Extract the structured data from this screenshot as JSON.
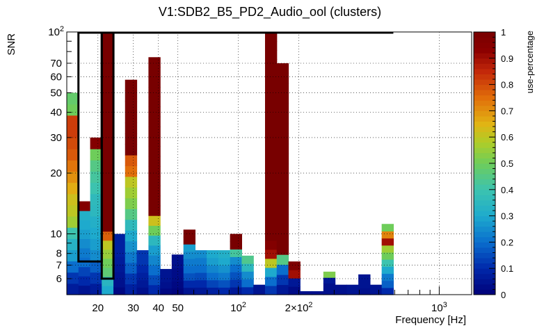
{
  "chart_data": {
    "type": "heatmap",
    "title": "V1:SDB2_B5_PD2_Audio_ool (clusters)",
    "xlabel": "Frequency [Hz]",
    "ylabel": "SNR",
    "zlabel": "use-percentage",
    "x_scale": "log",
    "y_scale": "log",
    "xlim": [
      14,
      1450
    ],
    "ylim": [
      5,
      100
    ],
    "zlim": [
      0,
      1
    ],
    "x_tick_labels": [
      {
        "value": 20,
        "label": "20"
      },
      {
        "value": 30,
        "label": "30"
      },
      {
        "value": 40,
        "label": "40"
      },
      {
        "value": 50,
        "label": "50"
      },
      {
        "value": 100,
        "label": "10",
        "exponent": "2"
      },
      {
        "value": 200,
        "label": "2×10",
        "exponent": "2"
      },
      {
        "value": 1000,
        "label": "10",
        "exponent": "3"
      }
    ],
    "y_tick_labels": [
      {
        "value": 6,
        "label": "6"
      },
      {
        "value": 7,
        "label": "7"
      },
      {
        "value": 8,
        "label": "8"
      },
      {
        "value": 10,
        "label": "10"
      },
      {
        "value": 20,
        "label": "20"
      },
      {
        "value": 30,
        "label": "30"
      },
      {
        "value": 40,
        "label": "40"
      },
      {
        "value": 50,
        "label": "50"
      },
      {
        "value": 60,
        "label": "60"
      },
      {
        "value": 70,
        "label": "70"
      },
      {
        "value": 100,
        "label": "10",
        "exponent": "2"
      }
    ],
    "z_tick_labels": [
      "0",
      "0.1",
      "0.2",
      "0.3",
      "0.4",
      "0.5",
      "0.6",
      "0.7",
      "0.8",
      "0.9",
      "1"
    ],
    "grid": true,
    "columns": [
      {
        "f_lo": 14.0,
        "f_hi": 16.0,
        "snr_top": 50,
        "values": [
          0.07,
          0.12,
          0.2,
          0.28,
          0.33,
          0.4,
          0.56,
          0.6,
          0.62,
          0.66,
          0.7,
          0.74,
          0.78,
          0.8,
          0.82,
          0.82,
          0.5,
          0.48
        ]
      },
      {
        "f_lo": 16.0,
        "f_hi": 18.3,
        "snr_top": 14.5,
        "values": [
          0.05,
          0.1,
          0.14,
          0.2,
          0.22,
          0.25,
          0.28,
          0.3,
          0.32,
          0.96
        ]
      },
      {
        "f_lo": 18.3,
        "f_hi": 20.9,
        "snr_top": 30,
        "values": [
          0.07,
          0.12,
          0.18,
          0.25,
          0.28,
          0.3,
          0.32,
          0.35,
          0.36,
          0.4,
          0.42,
          0.45,
          0.5,
          0.96
        ]
      },
      {
        "f_lo": 20.9,
        "f_hi": 23.9,
        "snr_top": 100,
        "values": [
          0.3,
          0.34,
          0.47,
          0.5,
          0.55,
          0.6,
          0.77,
          1,
          1,
          1,
          1,
          1,
          1,
          1,
          1,
          1,
          1,
          1,
          1,
          1,
          1,
          1,
          1,
          1,
          1,
          1,
          1,
          1,
          1
        ]
      },
      {
        "f_lo": 23.9,
        "f_hi": 27.3,
        "snr_top": 10,
        "values": [
          0.02,
          0.04,
          0.05,
          0.06,
          0.07,
          0.08,
          0.08,
          0.08
        ]
      },
      {
        "f_lo": 27.3,
        "f_hi": 31.2,
        "snr_top": 58,
        "values": [
          0.08,
          0.12,
          0.18,
          0.22,
          0.26,
          0.3,
          0.36,
          0.45,
          0.52,
          0.56,
          0.6,
          0.75,
          0.78,
          1,
          1,
          1,
          1,
          1,
          1,
          1
        ]
      },
      {
        "f_lo": 31.2,
        "f_hi": 35.7,
        "snr_top": 8.3,
        "values": [
          0.04,
          0.06,
          0.08,
          0.1,
          0.12,
          0.12
        ]
      },
      {
        "f_lo": 35.7,
        "f_hi": 40.8,
        "snr_top": 75,
        "values": [
          0.1,
          0.15,
          0.2,
          0.24,
          0.28,
          0.35,
          0.5,
          0.62,
          1,
          1,
          1,
          1,
          1,
          1,
          1,
          1,
          1,
          1,
          1,
          1,
          1,
          1,
          1,
          1
        ]
      },
      {
        "f_lo": 40.8,
        "f_hi": 46.6,
        "snr_top": 6.7,
        "values": [
          0.02,
          0.04,
          0.05,
          0.05
        ]
      },
      {
        "f_lo": 46.6,
        "f_hi": 53.3,
        "snr_top": 7.9,
        "values": [
          0.01,
          0.02,
          0.03,
          0.03,
          0.04,
          0.04
        ]
      },
      {
        "f_lo": 53.3,
        "f_hi": 60.9,
        "snr_top": 10.5,
        "values": [
          0.05,
          0.1,
          0.16,
          0.2,
          0.22,
          0.25,
          0.28,
          1,
          1
        ]
      },
      {
        "f_lo": 60.9,
        "f_hi": 69.6,
        "snr_top": 8.3,
        "values": [
          0.06,
          0.1,
          0.15,
          0.2,
          0.22,
          0.25
        ]
      },
      {
        "f_lo": 69.6,
        "f_hi": 79.5,
        "snr_top": 8.3,
        "values": [
          0.08,
          0.14,
          0.2,
          0.24,
          0.28,
          0.3
        ]
      },
      {
        "f_lo": 79.5,
        "f_hi": 90.9,
        "snr_top": 8.3,
        "values": [
          0.1,
          0.16,
          0.22,
          0.26,
          0.3,
          0.32
        ]
      },
      {
        "f_lo": 90.9,
        "f_hi": 103.9,
        "snr_top": 10,
        "values": [
          0.06,
          0.12,
          0.16,
          0.2,
          0.25,
          0.42,
          1,
          1
        ]
      },
      {
        "f_lo": 103.9,
        "f_hi": 118.8,
        "snr_top": 7.8,
        "values": [
          0.1,
          0.2,
          0.25,
          0.35,
          0.44
        ]
      },
      {
        "f_lo": 118.8,
        "f_hi": 135.8,
        "snr_top": 5.6,
        "values": [
          0.05,
          0.05
        ]
      },
      {
        "f_lo": 135.8,
        "f_hi": 155.2,
        "snr_top": 100,
        "values": [
          0.12,
          0.2,
          0.3,
          0.6,
          0.9,
          0.96,
          1,
          1,
          1,
          1,
          1,
          1,
          1,
          1,
          1,
          1,
          1,
          1,
          1,
          1,
          1,
          1,
          1,
          1,
          1,
          1,
          1,
          1,
          1
        ]
      },
      {
        "f_lo": 155.2,
        "f_hi": 177.4,
        "snr_top": 70,
        "values": [
          0.06,
          0.12,
          0.2,
          0.45,
          1,
          1,
          1,
          1,
          1,
          1,
          1,
          1,
          1,
          1,
          1,
          1,
          1,
          1,
          1,
          1,
          1,
          1,
          1
        ]
      },
      {
        "f_lo": 177.4,
        "f_hi": 202.8,
        "snr_top": 7.3,
        "values": [
          0.03,
          0.06,
          0.9,
          0.98
        ]
      },
      {
        "f_lo": 202.8,
        "f_hi": 231.8,
        "snr_top": 5.2,
        "values": [
          0.04
        ]
      },
      {
        "f_lo": 231.8,
        "f_hi": 265.0,
        "snr_top": 5.2,
        "values": [
          0.04
        ]
      },
      {
        "f_lo": 265.0,
        "f_hi": 302.9,
        "snr_top": 6.5,
        "values": [
          0.04,
          0.04,
          0.06,
          0.52
        ]
      },
      {
        "f_lo": 302.9,
        "f_hi": 346.2,
        "snr_top": 5.6,
        "values": [
          0.04,
          0.04
        ]
      },
      {
        "f_lo": 346.2,
        "f_hi": 395.7,
        "snr_top": 5.6,
        "values": [
          0.05,
          0.05
        ]
      },
      {
        "f_lo": 395.7,
        "f_hi": 452.3,
        "snr_top": 6.3,
        "values": [
          0.04,
          0.05,
          0.05
        ]
      },
      {
        "f_lo": 452.3,
        "f_hi": 517.0,
        "snr_top": 5.6,
        "values": [
          0.05,
          0.05
        ]
      },
      {
        "f_lo": 517.0,
        "f_hi": 591.0,
        "snr_top": 11.2,
        "values": [
          0.1,
          0.18,
          0.22,
          0.3,
          0.4,
          0.5,
          0.56,
          0.9,
          0.72,
          0.5
        ]
      }
    ],
    "boxes": [
      {
        "f_lo": 16.0,
        "f_hi": 20.9,
        "snr_lo": 7.3,
        "snr_hi": 100
      },
      {
        "f_lo": 20.9,
        "f_hi": 23.9,
        "snr_lo": 6,
        "snr_hi": 100
      },
      {
        "f_lo": 23.9,
        "f_hi": 591.0,
        "snr_lo": 100,
        "snr_hi": 100
      }
    ]
  }
}
